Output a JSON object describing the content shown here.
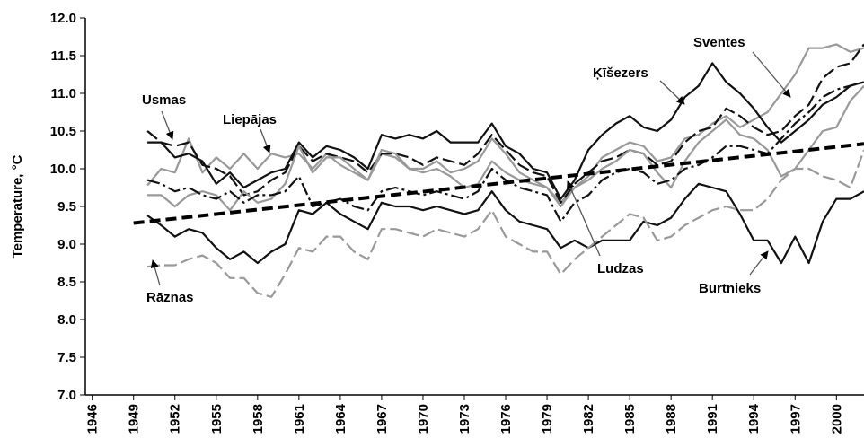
{
  "chart_data": {
    "type": "line",
    "y_label": "Temperature, °C",
    "x": [
      1950,
      1951,
      1952,
      1953,
      1954,
      1955,
      1956,
      1957,
      1958,
      1959,
      1960,
      1961,
      1962,
      1963,
      1964,
      1965,
      1966,
      1967,
      1968,
      1969,
      1970,
      1971,
      1972,
      1973,
      1974,
      1975,
      1976,
      1977,
      1978,
      1979,
      1980,
      1981,
      1982,
      1983,
      1984,
      1985,
      1986,
      1987,
      1988,
      1989,
      1990,
      1991,
      1992,
      1993,
      1994,
      1995,
      1996,
      1997,
      1998,
      1999,
      2000,
      2001,
      2002
    ],
    "xlim": [
      1945.5,
      2002
    ],
    "xticks": [
      1946,
      1949,
      1952,
      1955,
      1958,
      1961,
      1964,
      1967,
      1970,
      1973,
      1976,
      1979,
      1982,
      1985,
      1988,
      1991,
      1994,
      1997,
      2000
    ],
    "ylim": [
      7,
      12
    ],
    "yticks": [
      {
        "value": 7,
        "label": "7.0"
      },
      7.5,
      {
        "value": 8,
        "label": "8.0"
      },
      8.5,
      {
        "value": 9,
        "label": "9.0"
      },
      9.5,
      {
        "value": 10,
        "label": "10.0"
      },
      10.5,
      {
        "value": 11,
        "label": "11.0"
      },
      11.5,
      {
        "value": 12,
        "label": "12.0"
      }
    ],
    "series": [
      {
        "name": "Sventes",
        "color": "#999999",
        "dash": "solid",
        "values": [
          9.78,
          10.0,
          9.95,
          10.4,
          9.95,
          10.15,
          10.0,
          10.2,
          10.0,
          10.2,
          10.15,
          10.2,
          10.0,
          10.2,
          10.05,
          9.95,
          9.85,
          10.2,
          10.15,
          10.0,
          9.95,
          10.0,
          9.9,
          9.75,
          9.8,
          10.1,
          9.95,
          9.85,
          9.8,
          9.75,
          9.55,
          9.75,
          9.9,
          10.15,
          10.25,
          10.35,
          10.3,
          10.1,
          10.15,
          10.4,
          10.45,
          10.6,
          10.7,
          10.55,
          10.65,
          10.75,
          11.0,
          11.25,
          11.6,
          11.6,
          11.65,
          11.55,
          11.6
        ]
      },
      {
        "name": "Ķīšezers",
        "color": "#111111",
        "dash": "solid",
        "values": [
          10.35,
          10.35,
          10.15,
          10.2,
          10.1,
          9.8,
          9.95,
          9.75,
          9.85,
          9.95,
          10.0,
          10.35,
          10.15,
          10.3,
          10.25,
          10.15,
          10.0,
          10.45,
          10.4,
          10.45,
          10.4,
          10.5,
          10.35,
          10.35,
          10.35,
          10.6,
          10.3,
          10.2,
          10.0,
          9.95,
          9.6,
          9.85,
          10.25,
          10.45,
          10.6,
          10.7,
          10.55,
          10.5,
          10.65,
          10.95,
          11.1,
          11.4,
          11.15,
          11.0,
          10.8,
          10.55,
          10.35,
          10.5,
          10.65,
          10.85,
          10.95,
          11.1,
          11.15
        ]
      },
      {
        "name": "Usmas",
        "color": "#111111",
        "dash": "dashed",
        "values": [
          10.5,
          10.35,
          10.3,
          10.35,
          10.05,
          10.0,
          9.9,
          9.65,
          9.7,
          9.85,
          9.95,
          10.3,
          10.1,
          10.2,
          10.15,
          10.1,
          9.95,
          10.2,
          10.2,
          10.15,
          10.05,
          10.15,
          10.1,
          10.05,
          10.2,
          10.45,
          10.25,
          10.05,
          9.95,
          9.9,
          9.55,
          9.8,
          9.95,
          10.1,
          10.15,
          10.25,
          10.2,
          10.05,
          10.1,
          10.35,
          10.5,
          10.55,
          10.8,
          10.7,
          10.55,
          10.45,
          10.5,
          10.7,
          10.85,
          11.2,
          11.35,
          11.4,
          11.65
        ]
      },
      {
        "name": "Liepājas",
        "color": "#999999",
        "dash": "solid",
        "values": [
          9.65,
          9.65,
          9.5,
          9.65,
          9.7,
          9.65,
          9.45,
          9.7,
          9.55,
          9.6,
          9.8,
          10.3,
          9.95,
          10.15,
          10.15,
          10.0,
          9.85,
          10.25,
          10.2,
          10.0,
          10.0,
          10.1,
          9.95,
          10.0,
          10.1,
          10.4,
          10.2,
          9.95,
          9.85,
          9.75,
          9.5,
          9.75,
          9.85,
          10.0,
          10.1,
          10.25,
          10.2,
          9.95,
          9.75,
          10.1,
          10.35,
          10.5,
          10.65,
          10.45,
          10.4,
          10.25,
          9.9,
          10.0,
          10.25,
          10.5,
          10.55,
          10.9,
          11.1
        ]
      },
      {
        "name": "Ludzas",
        "color": "#111111",
        "dash": "dashdot",
        "values": [
          9.85,
          9.8,
          9.7,
          9.75,
          9.65,
          9.6,
          9.7,
          9.55,
          9.65,
          9.65,
          9.7,
          9.9,
          9.5,
          9.55,
          9.6,
          9.5,
          9.45,
          9.7,
          9.75,
          9.7,
          9.65,
          9.7,
          9.65,
          9.6,
          9.7,
          10.0,
          9.85,
          9.75,
          9.7,
          9.65,
          9.3,
          9.55,
          9.65,
          9.85,
          9.95,
          10.0,
          9.95,
          9.8,
          9.85,
          10.0,
          10.05,
          10.15,
          10.3,
          10.3,
          10.25,
          10.2,
          10.4,
          10.6,
          10.75,
          10.95,
          11.05,
          11.1,
          11.15
        ]
      },
      {
        "name": "Burtnieks",
        "color": "#111111",
        "dash": "solid",
        "values": [
          9.38,
          9.25,
          9.1,
          9.2,
          9.15,
          8.95,
          8.8,
          8.9,
          8.75,
          8.9,
          9.0,
          9.45,
          9.4,
          9.55,
          9.4,
          9.3,
          9.2,
          9.55,
          9.5,
          9.5,
          9.45,
          9.5,
          9.45,
          9.4,
          9.45,
          9.7,
          9.45,
          9.3,
          9.25,
          9.2,
          8.95,
          9.05,
          8.95,
          9.05,
          9.05,
          9.05,
          9.3,
          9.25,
          9.35,
          9.6,
          9.8,
          9.75,
          9.7,
          9.4,
          9.05,
          9.05,
          8.75,
          9.1,
          8.75,
          9.3,
          9.6,
          9.6,
          9.7
        ]
      },
      {
        "name": "Rāznas",
        "color": "#999999",
        "dash": "dashed",
        "values": [
          8.7,
          8.72,
          8.72,
          8.8,
          8.85,
          8.75,
          8.55,
          8.55,
          8.35,
          8.3,
          8.6,
          8.95,
          8.9,
          9.1,
          9.1,
          8.9,
          8.8,
          9.2,
          9.2,
          9.15,
          9.1,
          9.2,
          9.15,
          9.1,
          9.2,
          9.45,
          9.1,
          9.0,
          8.9,
          8.9,
          8.6,
          8.8,
          8.95,
          9.1,
          9.25,
          9.4,
          9.35,
          9.05,
          9.1,
          9.25,
          9.35,
          9.45,
          9.5,
          9.45,
          9.45,
          9.6,
          9.85,
          10.0,
          10.0,
          9.9,
          9.85,
          9.75,
          10.25
        ]
      },
      {
        "color": "#000000",
        "dash": "trend",
        "x": [
          1949,
          2002
        ],
        "values": [
          9.28,
          10.33
        ]
      }
    ]
  }
}
